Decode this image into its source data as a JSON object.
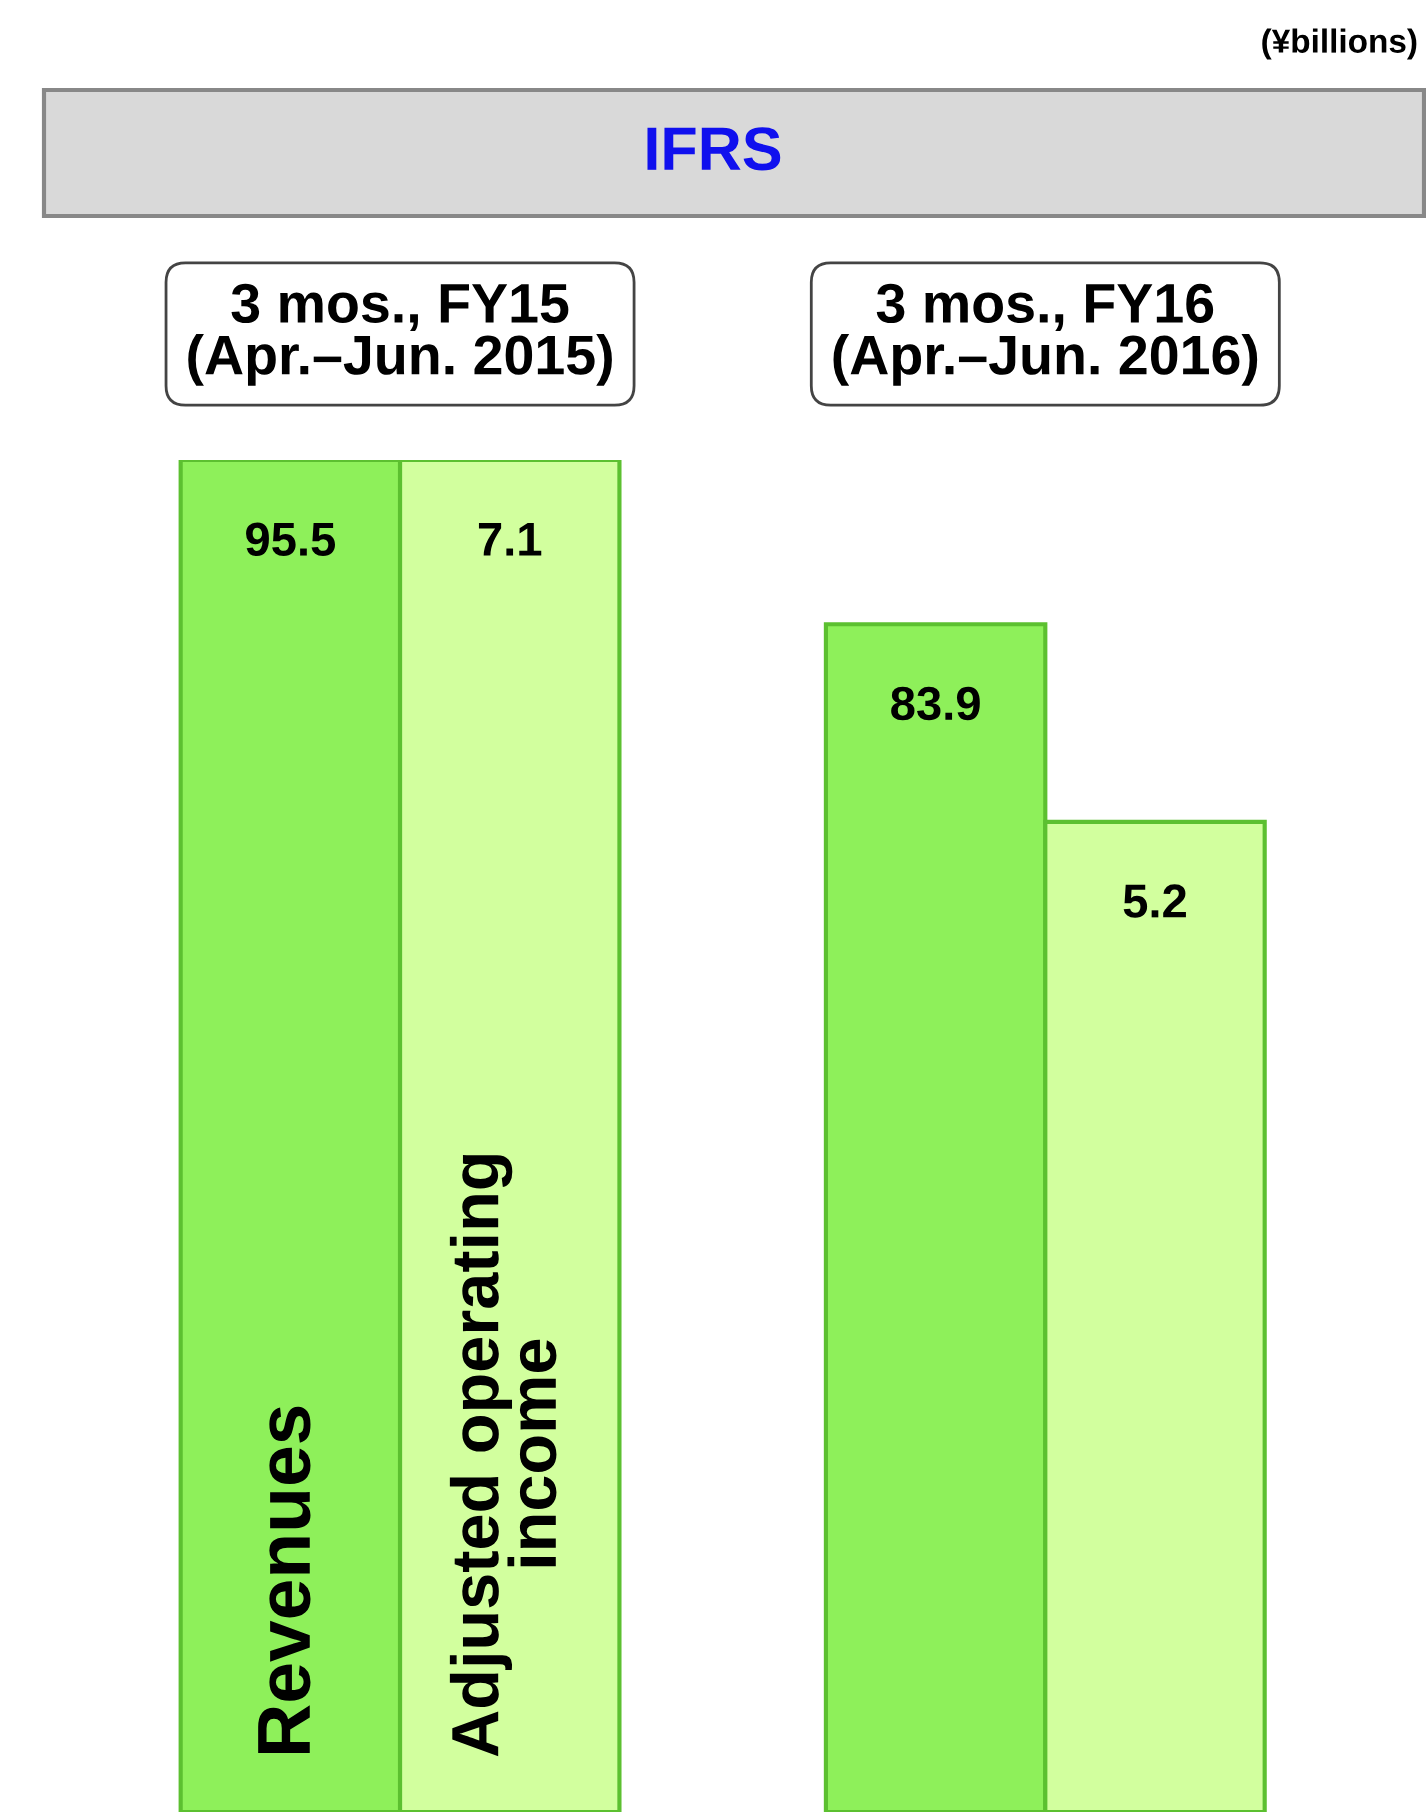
{
  "chart_data": {
    "type": "bar",
    "title": "IFRS",
    "categories": [
      "3 mos., FY15\n(Apr.–Jun. 2015)",
      "3 mos., FY16\n(Apr.–Jun. 2016)"
    ],
    "series": [
      {
        "name": "Revenues",
        "color": "#8ef05a",
        "values": [
          95.5,
          83.9
        ]
      },
      {
        "name": "Adjusted operating income",
        "color": "#d2ff9e",
        "values": [
          7.1,
          5.2
        ],
        "axis": "y2"
      }
    ],
    "data_labels": true,
    "annotations": [
      "(¥billions)"
    ]
  }
}
